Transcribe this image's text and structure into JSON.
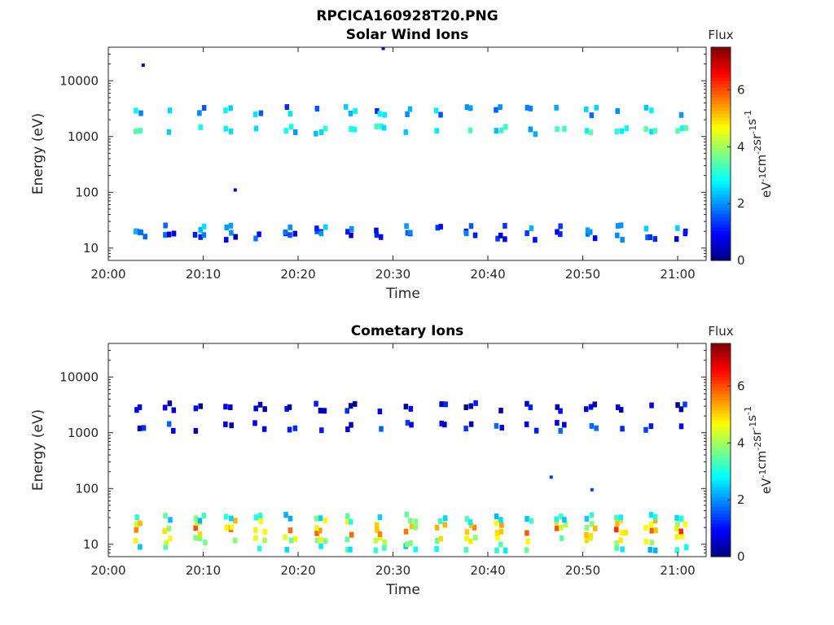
{
  "figure": {
    "title": "RPCICA160928T20.PNG"
  },
  "chart_data": [
    {
      "type": "heatmap",
      "title": "Solar Wind Ions",
      "xlabel": "Time",
      "ylabel": "Energy (eV)",
      "x_ticks": [
        "20:00",
        "20:10",
        "20:20",
        "20:30",
        "20:40",
        "20:50",
        "21:00"
      ],
      "y_ticks": [
        "10",
        "100",
        "1000",
        "10000"
      ],
      "y_scale": "log",
      "ylim": [
        6,
        40000
      ],
      "xlim_minutes": [
        0,
        63
      ],
      "colorbar": {
        "title": "Flux",
        "label": "eV-1cm-2sr-1s-1",
        "ticks": [
          "0",
          "2",
          "4",
          "6"
        ],
        "range": [
          0,
          7.5
        ],
        "colormap": "jet"
      },
      "sweep_times_min": [
        3.3,
        6.4,
        9.6,
        12.8,
        15.9,
        19.1,
        22.3,
        25.5,
        28.6,
        31.8,
        35.0,
        38.1,
        41.3,
        44.5,
        47.6,
        50.8,
        54.0,
        57.1,
        60.3
      ],
      "bands": [
        {
          "energy_eV": 17,
          "flux": 1.2
        },
        {
          "energy_eV": 22,
          "flux": 1.8
        },
        {
          "energy_eV": 1300,
          "flux": 2.8
        },
        {
          "energy_eV": 2900,
          "flux": 2.0
        }
      ],
      "isolated_points": [
        {
          "time_min": 3.5,
          "energy_eV": 19000,
          "flux": 0.5
        },
        {
          "time_min": 13.2,
          "energy_eV": 110,
          "flux": 0.6
        },
        {
          "time_min": 28.8,
          "energy_eV": 38000,
          "flux": 0.5
        }
      ]
    },
    {
      "type": "heatmap",
      "title": "Cometary Ions",
      "xlabel": "Time",
      "ylabel": "Energy (eV)",
      "x_ticks": [
        "20:00",
        "20:10",
        "20:20",
        "20:30",
        "20:40",
        "20:50",
        "21:00"
      ],
      "y_ticks": [
        "10",
        "100",
        "1000",
        "10000"
      ],
      "y_scale": "log",
      "ylim": [
        6,
        40000
      ],
      "xlim_minutes": [
        0,
        63
      ],
      "colorbar": {
        "title": "Flux",
        "label": "eV-1cm-2sr-1s-1",
        "ticks": [
          "0",
          "2",
          "4",
          "6"
        ],
        "range": [
          0,
          7.5
        ],
        "colormap": "jet"
      },
      "sweep_times_min": [
        3.3,
        6.4,
        9.6,
        12.8,
        15.9,
        19.1,
        22.3,
        25.5,
        28.6,
        31.8,
        35.0,
        38.1,
        41.3,
        44.5,
        47.6,
        50.8,
        54.0,
        57.1,
        60.3
      ],
      "bands": [
        {
          "energy_eV": 8,
          "flux": 3.0
        },
        {
          "energy_eV": 12,
          "flux": 4.2
        },
        {
          "energy_eV": 17,
          "flux": 5.5
        },
        {
          "energy_eV": 23,
          "flux": 4.6
        },
        {
          "energy_eV": 30,
          "flux": 3.0
        },
        {
          "energy_eV": 1300,
          "flux": 1.0
        },
        {
          "energy_eV": 2900,
          "flux": 0.6
        }
      ],
      "isolated_points": [
        {
          "time_min": 46.5,
          "energy_eV": 160,
          "flux": 1.4
        },
        {
          "time_min": 50.8,
          "energy_eV": 95,
          "flux": 1.4
        }
      ]
    }
  ]
}
